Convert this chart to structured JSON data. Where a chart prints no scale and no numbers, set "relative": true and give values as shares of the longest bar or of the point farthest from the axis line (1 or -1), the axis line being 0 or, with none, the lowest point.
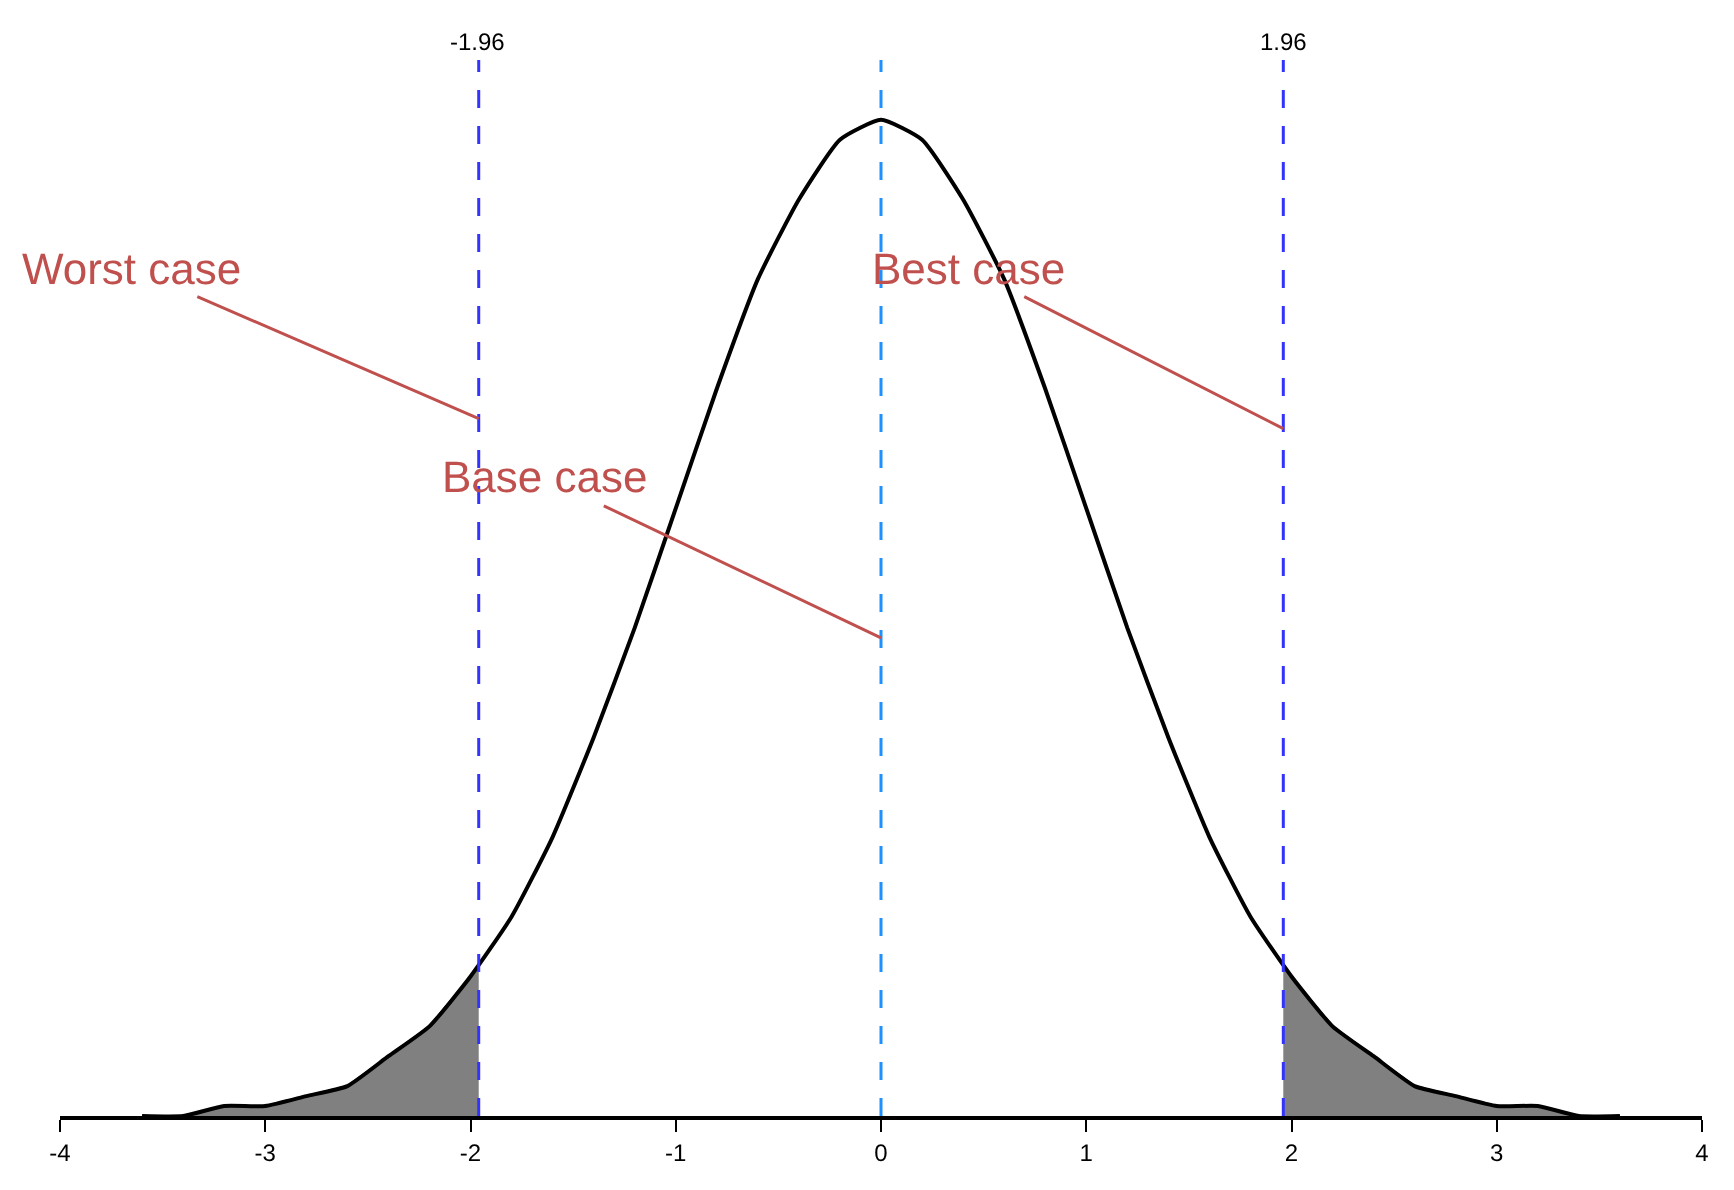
{
  "chart_data": {
    "type": "line",
    "relative": true,
    "xlim": [
      -4,
      4
    ],
    "xticks": [
      -4,
      -3,
      -2,
      -1,
      0,
      1,
      2,
      3,
      4
    ],
    "marker": "none",
    "line_style": "solid",
    "series": [
      {
        "type": "area",
        "color": "#808080",
        "x": [
          -3.6,
          -3.4,
          -3.2,
          -3.0,
          -2.8,
          -2.6,
          -2.4,
          -2.2,
          -2.0,
          -1.96
        ],
        "values": [
          0.0,
          0.0,
          0.01,
          0.01,
          0.02,
          0.03,
          0.06,
          0.09,
          0.14,
          0.15
        ]
      },
      {
        "type": "area",
        "color": "#808080",
        "x": [
          1.96,
          2.0,
          2.2,
          2.4,
          2.6,
          2.8,
          3.0,
          3.2,
          3.4,
          3.6
        ],
        "values": [
          0.15,
          0.14,
          0.09,
          0.06,
          0.03,
          0.02,
          0.01,
          0.01,
          0.0,
          0.0
        ]
      },
      {
        "color": "#000000",
        "x": [
          -3.6,
          -3.4,
          -3.2,
          -3.0,
          -2.8,
          -2.6,
          -2.4,
          -2.2,
          -2.0,
          -1.8,
          -1.6,
          -1.4,
          -1.2,
          -1.0,
          -0.8,
          -0.6,
          -0.4,
          -0.2,
          0.0,
          0.2,
          0.4,
          0.6,
          0.8,
          1.0,
          1.2,
          1.4,
          1.6,
          1.8,
          2.0,
          2.2,
          2.4,
          2.6,
          2.8,
          3.0,
          3.2,
          3.4,
          3.6
        ],
        "values": [
          0.0,
          0.0,
          0.01,
          0.01,
          0.02,
          0.03,
          0.06,
          0.09,
          0.14,
          0.2,
          0.28,
          0.38,
          0.49,
          0.61,
          0.73,
          0.84,
          0.92,
          0.98,
          1.0,
          0.98,
          0.92,
          0.84,
          0.73,
          0.61,
          0.49,
          0.38,
          0.28,
          0.2,
          0.14,
          0.09,
          0.06,
          0.03,
          0.02,
          0.01,
          0.01,
          0.0,
          0.0
        ]
      }
    ],
    "ref_lines": [
      {
        "axis": "x",
        "value": -1.96,
        "label": "-1.96",
        "color": "#3333ff",
        "line_style": "dashed"
      },
      {
        "axis": "x",
        "value": 0,
        "color": "#1e90ff",
        "line_style": "dashed"
      },
      {
        "axis": "x",
        "value": 1.96,
        "label": "1.96",
        "color": "#3333ff",
        "line_style": "dashed"
      }
    ],
    "annotations": [
      {
        "text": "Worst case",
        "x": -1.96,
        "y": 0.7
      },
      {
        "text": "Base case",
        "x": 0,
        "y": 0.48
      },
      {
        "text": "Best case",
        "x": 1.96,
        "y": 0.69
      }
    ]
  }
}
